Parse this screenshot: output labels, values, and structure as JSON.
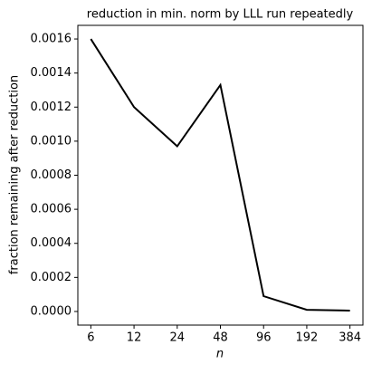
{
  "chart_data": {
    "type": "line",
    "title": "reduction in min. norm by LLL run repeatedly",
    "xlabel": "n",
    "ylabel": "fraction remaining after reduction",
    "x": [
      6,
      12,
      24,
      48,
      96,
      192,
      384
    ],
    "series": [
      {
        "color": "#000000",
        "values": [
          0.0016,
          0.0012,
          0.00097,
          0.00133,
          9e-05,
          1e-05,
          5e-06
        ]
      }
    ],
    "xscale": "log",
    "xlim": [
      4.87,
      473
    ],
    "xticks": [
      6,
      12,
      24,
      48,
      96,
      192,
      384
    ],
    "ylim": [
      -8e-05,
      0.00168
    ],
    "yticks": [
      {
        "value": 0,
        "label": "0.0000"
      },
      {
        "value": 0.0002,
        "label": "0.0002"
      },
      {
        "value": 0.0004,
        "label": "0.0004"
      },
      {
        "value": 0.0006,
        "label": "0.0006"
      },
      {
        "value": 0.0008,
        "label": "0.0008"
      },
      {
        "value": 0.001,
        "label": "0.0010"
      },
      {
        "value": 0.0012,
        "label": "0.0012"
      },
      {
        "value": 0.0014,
        "label": "0.0014"
      },
      {
        "value": 0.0016,
        "label": "0.0016"
      }
    ]
  }
}
